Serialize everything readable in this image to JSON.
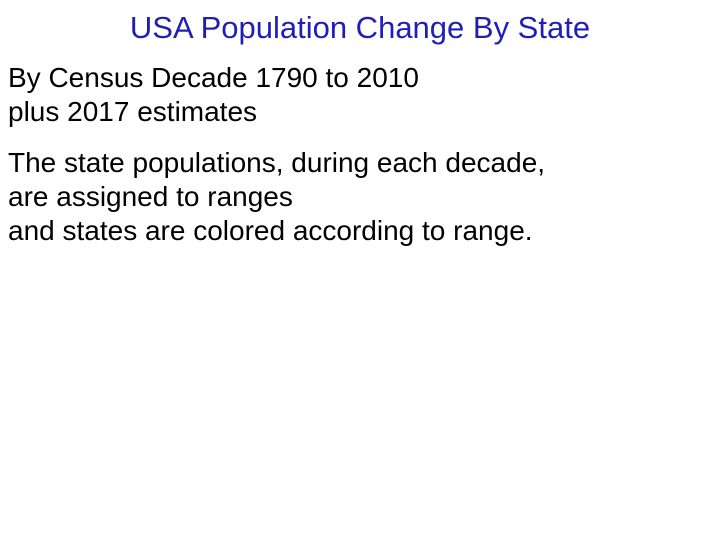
{
  "slide": {
    "title": "USA Population Change By State",
    "paragraph_1": {
      "line_1": "By Census Decade 1790 to 2010",
      "line_2": "plus 2017 estimates"
    },
    "paragraph_2": {
      "line_1": "The state populations, during each decade,",
      "line_2": "are assigned to ranges",
      "line_3": "and states are colored according to range."
    }
  },
  "colors": {
    "title": "#1f1fb8",
    "body_text": "#000000",
    "background": "#ffffff"
  }
}
